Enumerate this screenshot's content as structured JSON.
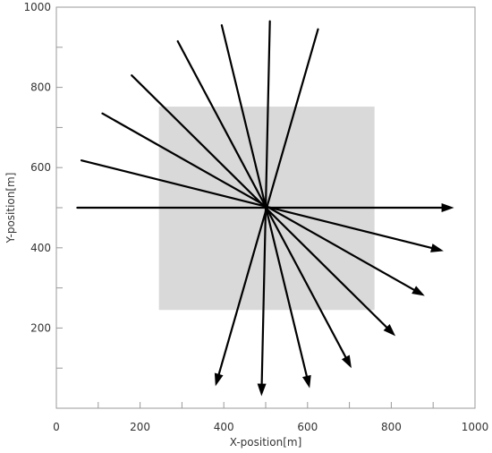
{
  "chart_data": {
    "type": "line",
    "title": "",
    "xlabel": "X-position[m]",
    "ylabel": "Y-position[m]",
    "xlim": [
      0,
      1000
    ],
    "ylim": [
      0,
      1000
    ],
    "x_ticks": [
      0,
      200,
      400,
      600,
      800,
      1000
    ],
    "y_ticks": [
      200,
      400,
      600,
      800,
      1000
    ],
    "x_minor_step": 100,
    "y_minor_step": 100,
    "grid": false,
    "region": {
      "x": [
        245,
        760
      ],
      "y": [
        245,
        752
      ],
      "color": "#d9d9d9"
    },
    "line_color": "#000000",
    "rays": [
      {
        "x0": 50,
        "y0": 500,
        "x1": 950,
        "y1": 500
      },
      {
        "x0": 60,
        "y0": 618,
        "x1": 925,
        "y1": 392
      },
      {
        "x0": 110,
        "y0": 735,
        "x1": 880,
        "y1": 280
      },
      {
        "x0": 180,
        "y0": 830,
        "x1": 810,
        "y1": 180
      },
      {
        "x0": 290,
        "y0": 915,
        "x1": 705,
        "y1": 100
      },
      {
        "x0": 395,
        "y0": 955,
        "x1": 605,
        "y1": 50
      },
      {
        "x0": 510,
        "y0": 965,
        "x1": 490,
        "y1": 30
      },
      {
        "x0": 625,
        "y0": 945,
        "x1": 380,
        "y1": 55
      }
    ]
  }
}
